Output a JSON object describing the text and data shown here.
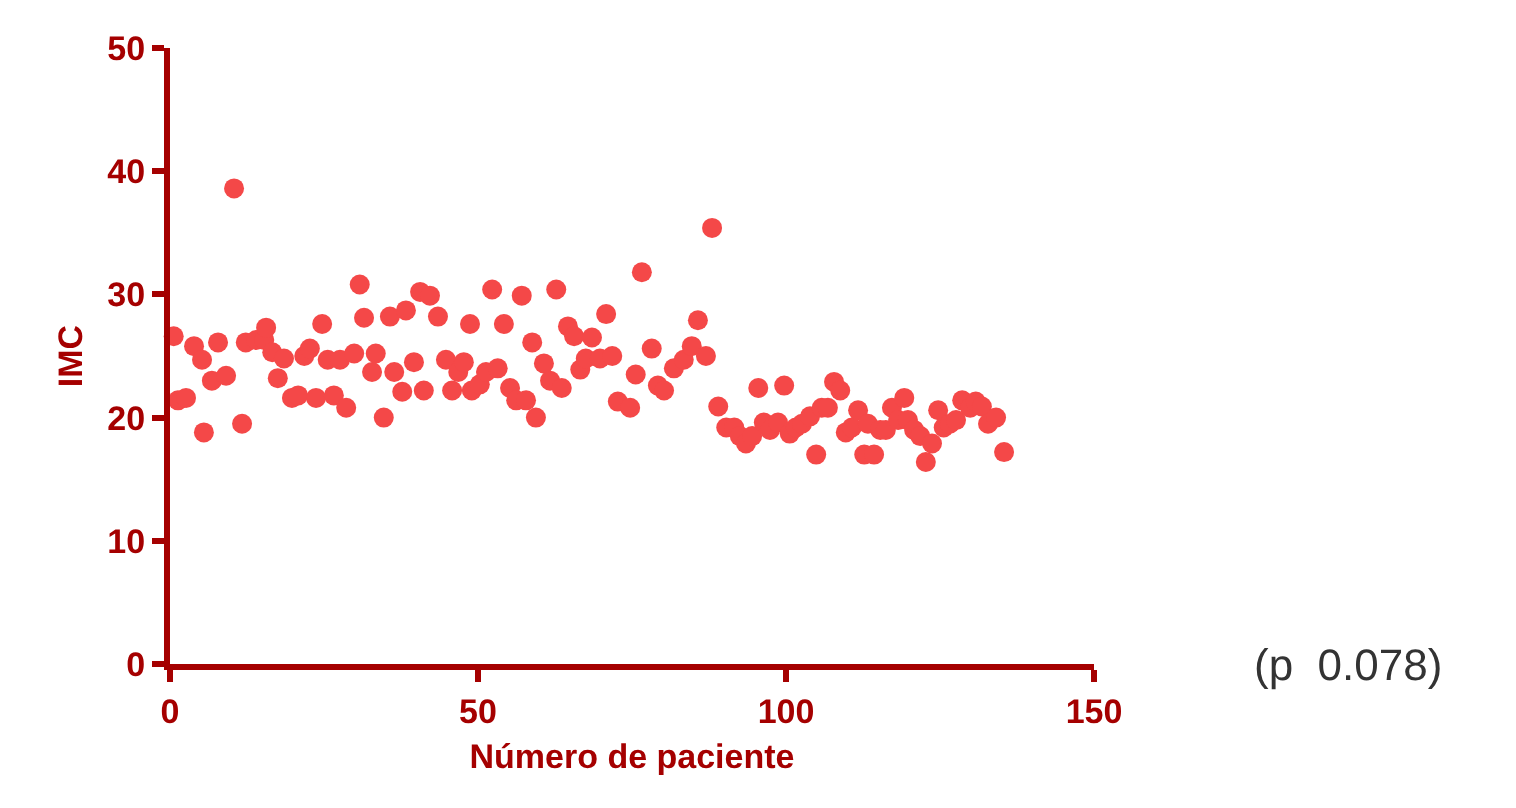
{
  "chart_data": {
    "type": "scatter",
    "xlabel": "Número de paciente",
    "ylabel": "IMC",
    "annotations": [
      "(p  0.078)"
    ],
    "x": [
      0.6,
      1.3,
      2.6,
      3.9,
      5.2,
      5.5,
      6.8,
      7.8,
      9.1,
      10.4,
      11.7,
      12.3,
      14,
      15.3,
      15.6,
      16.6,
      17.5,
      18.5,
      19.8,
      20.8,
      21.8,
      22.7,
      23.7,
      24.7,
      25.6,
      26.6,
      27.6,
      28.6,
      29.9,
      30.8,
      31.5,
      32.8,
      33.4,
      34.7,
      35.7,
      36.4,
      37.7,
      38.3,
      39.6,
      40.6,
      41.2,
      42.2,
      43.5,
      44.8,
      45.8,
      46.8,
      47.7,
      48.7,
      49,
      50.3,
      51.3,
      52.3,
      53.2,
      54.2,
      55.2,
      56.2,
      57.1,
      57.8,
      58.8,
      59.4,
      60.7,
      61.7,
      62.7,
      63.6,
      64.6,
      65.6,
      66.6,
      67.5,
      68.5,
      69.8,
      70.8,
      71.8,
      72.7,
      74.7,
      75.6,
      76.6,
      78.2,
      79.2,
      80.2,
      81.8,
      83.4,
      84.7,
      85.7,
      87,
      88,
      89,
      90.3,
      91.6,
      92.5,
      93.5,
      94.5,
      95.5,
      96.4,
      97.4,
      98.7,
      99.7,
      100.6,
      101.6,
      102.6,
      103.9,
      104.9,
      105.8,
      106.8,
      107.8,
      108.8,
      109.7,
      110.7,
      111.7,
      112.7,
      113.3,
      114.3,
      115.3,
      116.2,
      117.2,
      118.2,
      119.2,
      119.8,
      120.8,
      121.8,
      122.7,
      123.7,
      124.7,
      125.6,
      126.6,
      127.6,
      128.6,
      129.9,
      130.8,
      131.8,
      132.8,
      134.1,
      135.4
    ],
    "series": [
      {
        "color": "#f44848",
        "values": [
          26.6,
          21.4,
          21.6,
          25.8,
          24.7,
          18.8,
          23,
          26.1,
          23.4,
          38.6,
          19.5,
          26.1,
          26.3,
          26.3,
          27.3,
          25.3,
          23.2,
          24.8,
          21.6,
          21.8,
          25,
          25.6,
          21.6,
          27.6,
          24.7,
          21.8,
          24.7,
          20.8,
          25.2,
          30.8,
          28.1,
          23.7,
          25.2,
          20,
          28.2,
          23.7,
          22.1,
          28.7,
          24.5,
          30.2,
          22.2,
          29.9,
          28.2,
          24.7,
          22.2,
          23.7,
          24.5,
          27.6,
          22.2,
          22.7,
          23.7,
          30.4,
          24,
          27.6,
          22.4,
          21.4,
          29.9,
          21.4,
          26.1,
          20,
          24.4,
          23,
          30.4,
          22.4,
          27.4,
          26.6,
          23.9,
          24.8,
          26.5,
          24.8,
          28.4,
          25,
          21.3,
          20.8,
          23.5,
          31.8,
          25.6,
          22.6,
          22.2,
          24,
          24.7,
          25.8,
          27.9,
          25,
          35.4,
          20.9,
          19.2,
          19.2,
          18.5,
          17.9,
          18.5,
          22.4,
          19.6,
          19,
          19.6,
          22.6,
          18.7,
          19.2,
          19.5,
          20.1,
          17,
          20.8,
          20.8,
          22.9,
          22.2,
          18.8,
          19.2,
          20.6,
          17,
          19.5,
          17,
          19,
          19,
          20.8,
          19.8,
          21.6,
          19.8,
          19,
          18.5,
          16.4,
          17.9,
          20.6,
          19.2,
          19.5,
          19.8,
          21.4,
          20.8,
          21.3,
          20.9,
          19.5,
          20,
          17.2
        ]
      }
    ],
    "xlim": [
      0,
      150
    ],
    "xticks": [
      0,
      50,
      100,
      150
    ],
    "ylim": [
      0,
      50
    ],
    "yticks": [
      0,
      10,
      20,
      30,
      40,
      50
    ],
    "marker": "circle",
    "grid": false,
    "legend": false
  }
}
